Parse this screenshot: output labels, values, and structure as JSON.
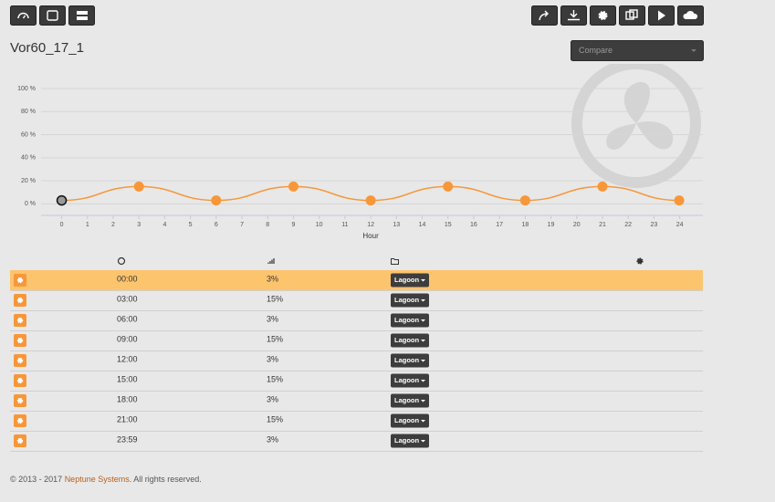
{
  "header": {
    "title": "Vor60_17_1",
    "compare": "Compare"
  },
  "chart_data": {
    "type": "line",
    "xlabel": "Hour",
    "x": [
      0,
      3,
      6,
      9,
      12,
      15,
      18,
      21,
      23.98
    ],
    "series": [
      {
        "color": "#f7973a",
        "values": [
          3,
          15,
          3,
          15,
          3,
          15,
          3,
          15,
          3
        ]
      }
    ],
    "xlim": [
      -0.8,
      24.9
    ],
    "ylim": [
      -10,
      100
    ],
    "xticks": [
      0,
      1,
      2,
      3,
      4,
      5,
      6,
      7,
      8,
      9,
      10,
      11,
      12,
      13,
      14,
      15,
      16,
      17,
      18,
      19,
      20,
      21,
      22,
      23,
      24
    ],
    "yticks": [
      {
        "value": 0,
        "label": "0 %"
      },
      {
        "value": 20,
        "label": "20 %"
      },
      {
        "value": 40,
        "label": "40 %"
      },
      {
        "value": 60,
        "label": "60 %"
      },
      {
        "value": 80,
        "label": "80 %"
      },
      {
        "value": 100,
        "label": "100 %"
      }
    ],
    "grid": true
  },
  "selected_row": 0,
  "table": {
    "rows": [
      {
        "time": "00:00",
        "level": "3%",
        "profile": "Lagoon"
      },
      {
        "time": "03:00",
        "level": "15%",
        "profile": "Lagoon"
      },
      {
        "time": "06:00",
        "level": "3%",
        "profile": "Lagoon"
      },
      {
        "time": "09:00",
        "level": "15%",
        "profile": "Lagoon"
      },
      {
        "time": "12:00",
        "level": "3%",
        "profile": "Lagoon"
      },
      {
        "time": "15:00",
        "level": "15%",
        "profile": "Lagoon"
      },
      {
        "time": "18:00",
        "level": "3%",
        "profile": "Lagoon"
      },
      {
        "time": "21:00",
        "level": "15%",
        "profile": "Lagoon"
      },
      {
        "time": "23:59",
        "level": "3%",
        "profile": "Lagoon"
      }
    ]
  },
  "footer": {
    "prefix": "© 2013 - 2017 ",
    "link": "Neptune Systems",
    "suffix": ". All rights reserved."
  }
}
